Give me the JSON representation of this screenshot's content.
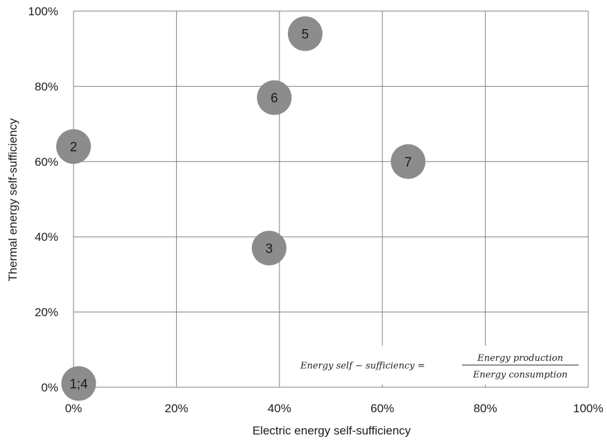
{
  "chart_data": {
    "type": "scatter",
    "xlabel": "Electric energy self-sufficiency",
    "ylabel": "Thermal energy self-sufficiency",
    "xlim": [
      0,
      100
    ],
    "ylim": [
      0,
      100
    ],
    "x_ticks": [
      0,
      20,
      40,
      60,
      80,
      100
    ],
    "y_ticks": [
      0,
      20,
      40,
      60,
      80,
      100
    ],
    "x_tick_labels": [
      "0%",
      "20%",
      "40%",
      "60%",
      "80%",
      "100%"
    ],
    "y_tick_labels": [
      "0%",
      "20%",
      "40%",
      "60%",
      "80%",
      "100%"
    ],
    "grid": true,
    "points": [
      {
        "label": "1;4",
        "x": 1,
        "y": 1
      },
      {
        "label": "2",
        "x": 0,
        "y": 64
      },
      {
        "label": "3",
        "x": 38,
        "y": 37
      },
      {
        "label": "5",
        "x": 45,
        "y": 94
      },
      {
        "label": "6",
        "x": 39,
        "y": 77
      },
      {
        "label": "7",
        "x": 65,
        "y": 60
      }
    ],
    "annotation": {
      "lhs": "Energy self − sufficiency =",
      "numerator": "Energy production",
      "denominator": "Energy consumption"
    },
    "colors": {
      "bubble": "#8c8c8c",
      "grid": "#7f7f7f",
      "text": "#1a1a1a"
    }
  }
}
